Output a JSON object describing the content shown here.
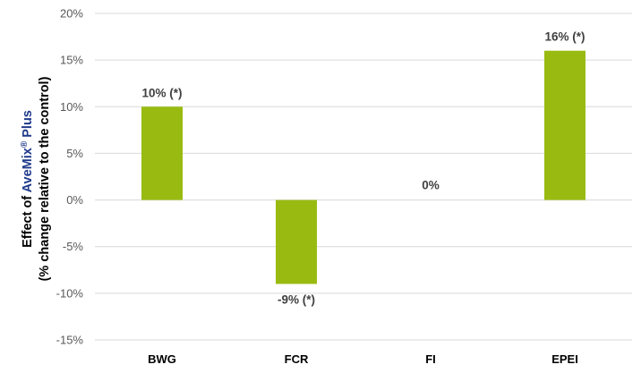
{
  "chart_data": {
    "type": "bar",
    "categories": [
      "BWG",
      "FCR",
      "FI",
      "EPEI"
    ],
    "values": [
      10,
      -9,
      0,
      16
    ],
    "data_labels": [
      "10% (*)",
      "-9% (*)",
      "0%",
      "16% (*)"
    ],
    "ylim": [
      -15,
      20
    ],
    "yticks": [
      -15,
      -10,
      -5,
      0,
      5,
      10,
      15,
      20
    ],
    "ytick_labels": [
      "-15%",
      "-10%",
      "-5%",
      "0%",
      "5%",
      "10%",
      "15%",
      "20%"
    ],
    "ylabel": {
      "line1_prefix": "Effect of ",
      "line1_brand": "AveMix",
      "line1_reg": "®",
      "line1_suffix": " Plus",
      "line2": "(% change relative to the control)"
    },
    "grid": true,
    "legend": "none",
    "colors": {
      "bar": "#99BB11",
      "brand": "#1F3A8A",
      "grid": "#D9D9D9"
    }
  }
}
